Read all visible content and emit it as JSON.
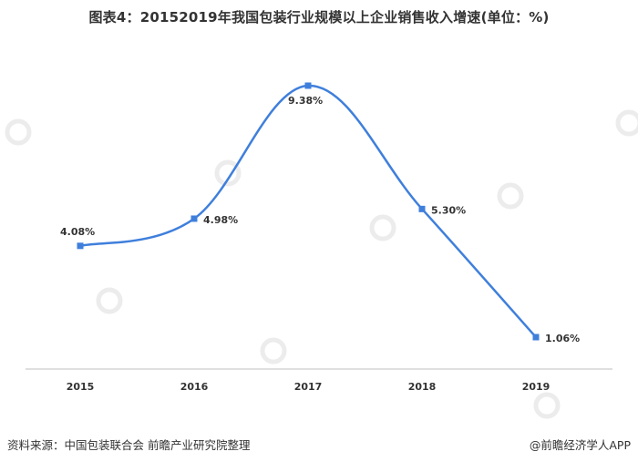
{
  "title": "图表4：20152019年我国包装行业规模以上企业销售收入增速(单位：%)",
  "footer": {
    "source": "资料来源：中国包装联合会 前瞻产业研究院整理",
    "brand": "@前瞻经济学人APP"
  },
  "colors": {
    "line": "#3f7fdc",
    "marker": "#3f7fdc",
    "axis": "#bfbfbf",
    "text": "#333333"
  },
  "chart_data": {
    "type": "line",
    "smooth": true,
    "categories": [
      "2015",
      "2016",
      "2017",
      "2018",
      "2019"
    ],
    "values": [
      4.08,
      4.98,
      9.38,
      5.3,
      1.06
    ],
    "labels": [
      "4.08%",
      "4.98%",
      "9.38%",
      "5.30%",
      "1.06%"
    ],
    "title": "图表4：20152019年我国包装行业规模以上企业销售收入增速(单位：%)",
    "xlabel": "",
    "ylabel": "",
    "ylim": [
      0,
      10
    ],
    "grid": false,
    "legend": "none"
  }
}
